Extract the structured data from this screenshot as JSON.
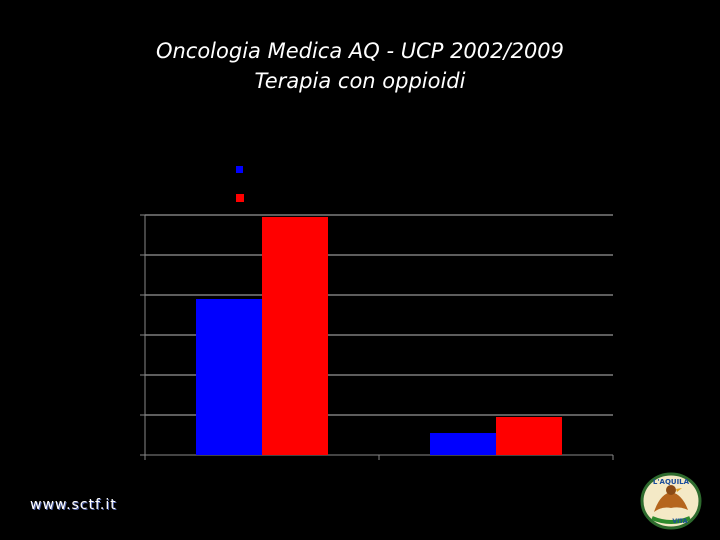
{
  "slide": {
    "title_line1": "Oncologia Medica AQ - UCP 2002/2009",
    "title_line2": "Terapia con oppioidi",
    "footer_url": "www.sctf.it",
    "logo_text_top": "L'AQUILA",
    "logo_text_bottom": "VITA"
  },
  "chart_data": {
    "type": "bar",
    "categories": [
      "",
      ""
    ],
    "series": [
      {
        "values": [
          3.9,
          0.55
        ],
        "color": "#0000ff"
      },
      {
        "values": [
          5.95,
          0.95
        ],
        "color": "#ff0000"
      }
    ],
    "ylim": [
      0,
      6
    ],
    "grid": true,
    "legend": "top-left",
    "background": "#000000",
    "gridline_color": "#bbbbbb"
  }
}
